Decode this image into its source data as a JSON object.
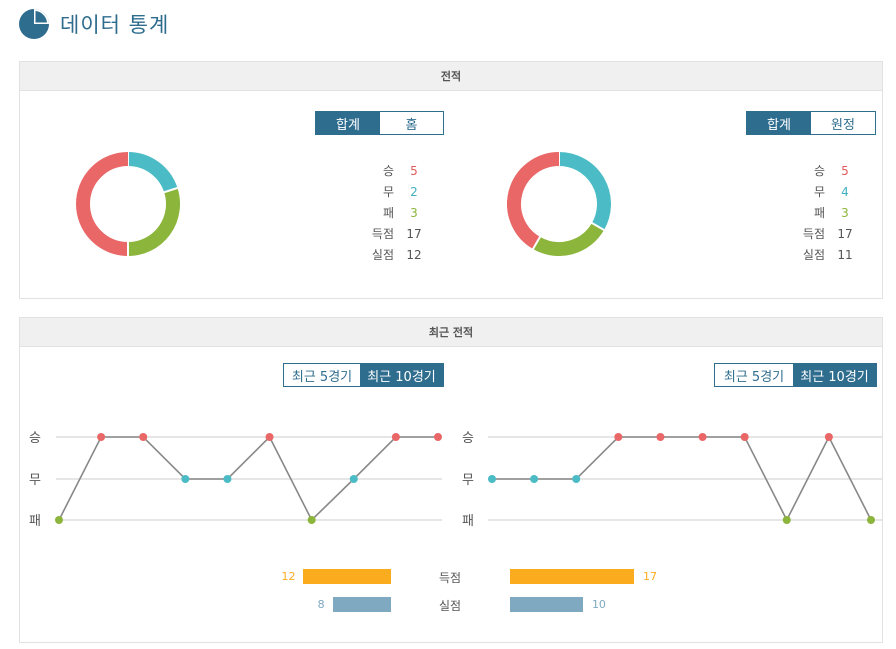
{
  "header": {
    "title": "데이터 통계",
    "icon": "pie-chart-icon"
  },
  "overall": {
    "section_title": "전적",
    "left": {
      "toggle": [
        "합계",
        "홈"
      ],
      "active": 0,
      "stats": [
        {
          "label": "승",
          "value": "5",
          "kind": "win"
        },
        {
          "label": "무",
          "value": "2",
          "kind": "draw"
        },
        {
          "label": "패",
          "value": "3",
          "kind": "loss"
        },
        {
          "label": "득점",
          "value": "17",
          "kind": "plain"
        },
        {
          "label": "실점",
          "value": "12",
          "kind": "plain"
        }
      ]
    },
    "right": {
      "toggle": [
        "합계",
        "원정"
      ],
      "active": 0,
      "stats": [
        {
          "label": "승",
          "value": "5",
          "kind": "win"
        },
        {
          "label": "무",
          "value": "4",
          "kind": "draw"
        },
        {
          "label": "패",
          "value": "3",
          "kind": "loss"
        },
        {
          "label": "득점",
          "value": "17",
          "kind": "plain"
        },
        {
          "label": "실점",
          "value": "11",
          "kind": "plain"
        }
      ]
    }
  },
  "recent": {
    "section_title": "최근 전적",
    "left_toggle": [
      "최근 5경기",
      "최근 10경기"
    ],
    "right_toggle": [
      "최근 5경기",
      "최근 10경기"
    ],
    "active": 1,
    "y_labels": [
      "승",
      "무",
      "패"
    ],
    "left_results": [
      "패",
      "승",
      "승",
      "무",
      "무",
      "승",
      "패",
      "무",
      "승",
      "승"
    ],
    "right_results": [
      "무",
      "무",
      "무",
      "승",
      "승",
      "승",
      "승",
      "패",
      "승",
      "패"
    ],
    "goals_label": "득점",
    "conceded_label": "실점",
    "left_goals": 12,
    "right_goals": 17,
    "left_conceded": 8,
    "right_conceded": 10
  },
  "colors": {
    "win": "#e96767",
    "draw": "#4bbcc6",
    "loss": "#8cb53c",
    "accent": "#2f6d8f",
    "goals_bar": "#fbab1e",
    "conceded_bar": "#7fa9c0"
  }
}
